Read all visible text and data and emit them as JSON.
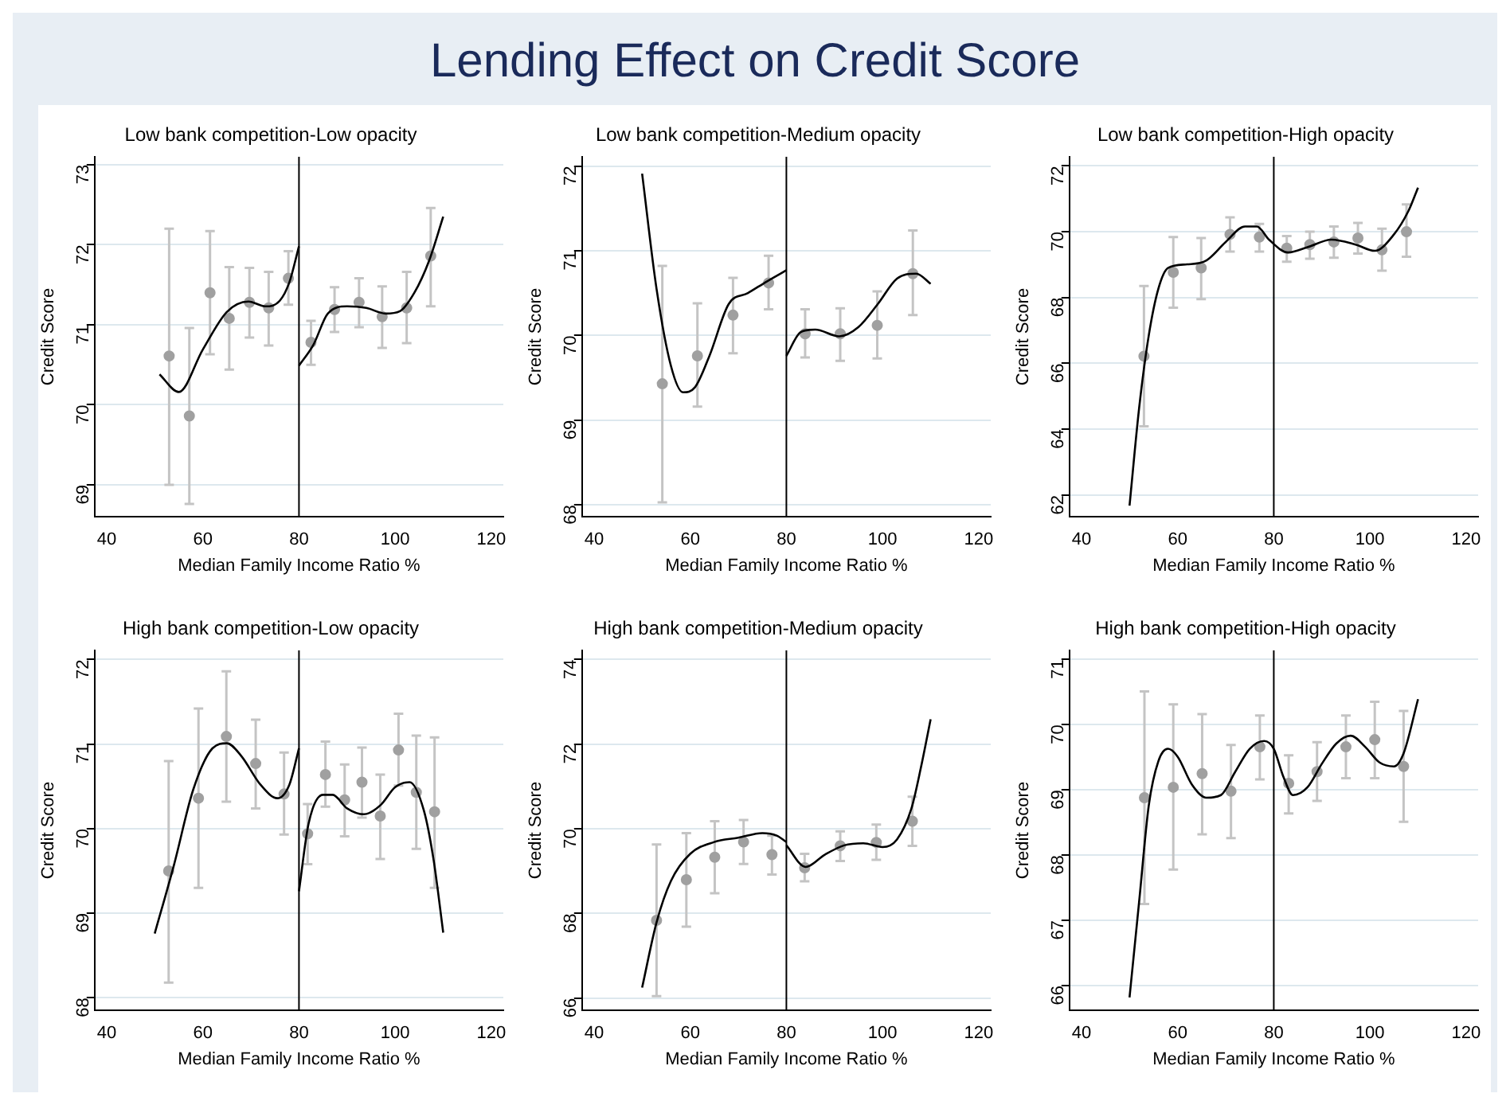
{
  "chart_data": [
    {
      "type": "other",
      "title": "Lending Effect on Credit Score"
    },
    {
      "type": "scatter",
      "title": "Low bank competition-Low opacity",
      "xlabel": "Median Family Income Ratio %",
      "ylabel": "Credit Score",
      "xlim": [
        37.5,
        122.5
      ],
      "xticks": [
        40,
        60,
        80,
        100,
        120
      ],
      "ylim": [
        68.6,
        73.1
      ],
      "yticks": [
        69,
        70,
        71,
        72,
        73
      ],
      "grid": "y",
      "ref_lines": [
        {
          "axis": "x",
          "value": 80,
          "color": "#000000"
        }
      ],
      "series": [
        {
          "type": "scatter",
          "color": "#a0a0a0",
          "marker": "circle",
          "x": [
            53,
            57.2,
            61.5,
            65.5,
            69.7,
            73.7,
            77.8,
            82.5,
            87.4,
            92.5,
            97.3,
            102.4,
            107.4
          ],
          "values": [
            70.61,
            69.86,
            71.4,
            71.08,
            71.28,
            71.21,
            71.58,
            70.78,
            71.19,
            71.28,
            71.1,
            71.21,
            71.86
          ],
          "errors": [
            [
              69.0,
              72.2
            ],
            [
              68.76,
              70.96
            ],
            [
              70.63,
              72.17
            ],
            [
              70.44,
              71.72
            ],
            [
              70.84,
              71.71
            ],
            [
              70.74,
              71.66
            ],
            [
              71.25,
              71.92
            ],
            [
              70.5,
              71.05
            ],
            [
              70.91,
              71.47
            ],
            [
              70.97,
              71.58
            ],
            [
              70.71,
              71.48
            ],
            [
              70.77,
              71.66
            ],
            [
              71.23,
              72.46
            ]
          ]
        },
        {
          "type": "line",
          "color": "#000000",
          "marker": "none",
          "x": [
            51,
            55,
            60,
            65,
            69.5,
            73,
            76,
            78,
            80
          ],
          "values": [
            70.38,
            70.16,
            70.69,
            71.16,
            71.29,
            71.23,
            71.3,
            71.53,
            71.98
          ]
        },
        {
          "type": "line",
          "color": "#000000",
          "marker": "none",
          "x": [
            80,
            83,
            86,
            90,
            94,
            98,
            101,
            104,
            107,
            110
          ],
          "values": [
            70.49,
            70.75,
            71.14,
            71.23,
            71.21,
            71.14,
            71.17,
            71.4,
            71.79,
            72.35
          ]
        }
      ]
    },
    {
      "type": "scatter",
      "title": "Low bank competition-Medium opacity",
      "xlabel": "Median Family Income Ratio %",
      "ylabel": "Credit Score",
      "xlim": [
        37.5,
        122.5
      ],
      "xticks": [
        40,
        60,
        80,
        100,
        120
      ],
      "ylim": [
        67.86,
        72.11
      ],
      "yticks": [
        68,
        69,
        70,
        71,
        72
      ],
      "grid": "y",
      "ref_lines": [
        {
          "axis": "x",
          "value": 80,
          "color": "#000000"
        }
      ],
      "series": [
        {
          "type": "scatter",
          "color": "#a0a0a0",
          "marker": "circle",
          "x": [
            54.2,
            61.5,
            68.9,
            76.3,
            83.9,
            91.2,
            98.9,
            106.3
          ],
          "values": [
            69.43,
            69.76,
            70.24,
            70.62,
            70.02,
            70.02,
            70.12,
            70.73
          ],
          "errors": [
            [
              68.03,
              70.82
            ],
            [
              69.16,
              70.38
            ],
            [
              69.79,
              70.68
            ],
            [
              70.31,
              70.94
            ],
            [
              69.74,
              70.31
            ],
            [
              69.7,
              70.32
            ],
            [
              69.73,
              70.52
            ],
            [
              70.24,
              71.24
            ]
          ]
        },
        {
          "type": "line",
          "color": "#000000",
          "marker": "none",
          "x": [
            50,
            53,
            56,
            58.5,
            61,
            64,
            68,
            72,
            76,
            80
          ],
          "values": [
            71.91,
            70.55,
            69.64,
            69.33,
            69.39,
            69.76,
            70.37,
            70.5,
            70.64,
            70.77
          ]
        },
        {
          "type": "line",
          "color": "#000000",
          "marker": "none",
          "x": [
            80,
            83,
            86,
            91,
            95,
            99,
            103,
            107,
            110
          ],
          "values": [
            69.76,
            70.04,
            70.07,
            69.99,
            70.1,
            70.37,
            70.67,
            70.73,
            70.61
          ]
        }
      ]
    },
    {
      "type": "scatter",
      "title": "Low bank competition-High opacity",
      "xlabel": "Median Family Income Ratio %",
      "ylabel": "Credit Score",
      "xlim": [
        37.5,
        122.5
      ],
      "xticks": [
        40,
        60,
        80,
        100,
        120
      ],
      "ylim": [
        61.34,
        72.28
      ],
      "yticks": [
        62,
        64,
        66,
        68,
        70,
        72
      ],
      "grid": "y",
      "ref_lines": [
        {
          "axis": "x",
          "value": 80,
          "color": "#000000"
        }
      ],
      "series": [
        {
          "type": "scatter",
          "color": "#a0a0a0",
          "marker": "circle",
          "x": [
            53,
            59.1,
            64.9,
            70.9,
            77,
            82.7,
            87.5,
            92.5,
            97.5,
            102.5,
            107.6
          ],
          "values": [
            66.22,
            68.77,
            68.9,
            69.92,
            69.84,
            69.5,
            69.61,
            69.69,
            69.81,
            69.45,
            70.0
          ],
          "errors": [
            [
              64.09,
              68.35
            ],
            [
              67.69,
              69.84
            ],
            [
              67.95,
              69.81
            ],
            [
              69.4,
              70.44
            ],
            [
              69.4,
              70.24
            ],
            [
              69.09,
              69.87
            ],
            [
              69.18,
              70.0
            ],
            [
              69.21,
              70.16
            ],
            [
              69.34,
              70.27
            ],
            [
              68.82,
              70.09
            ],
            [
              69.24,
              70.83
            ]
          ]
        },
        {
          "type": "line",
          "color": "#000000",
          "marker": "none",
          "x": [
            50,
            52,
            54,
            56,
            58,
            62,
            66,
            70,
            74,
            76.5,
            79,
            83,
            87,
            92,
            97,
            101,
            105,
            108,
            110
          ],
          "values": [
            61.68,
            64.65,
            66.85,
            68.27,
            68.9,
            69.01,
            69.13,
            69.69,
            70.16,
            70.16,
            69.76,
            69.37,
            69.53,
            69.76,
            69.61,
            69.42,
            69.92,
            70.63,
            71.34
          ]
        }
      ]
    },
    {
      "type": "scatter",
      "title": "High bank competition-Low opacity",
      "xlabel": "Median Family Income Ratio %",
      "ylabel": "Credit Score",
      "xlim": [
        37.5,
        122.5
      ],
      "xticks": [
        40,
        60,
        80,
        100,
        120
      ],
      "ylim": [
        67.85,
        72.11
      ],
      "yticks": [
        68,
        69,
        70,
        71,
        72
      ],
      "grid": "y",
      "ref_lines": [
        {
          "axis": "x",
          "value": 80,
          "color": "#000000"
        }
      ],
      "series": [
        {
          "type": "scatter",
          "color": "#a0a0a0",
          "marker": "circle",
          "x": [
            52.9,
            59.1,
            64.9,
            71,
            76.9,
            81.8,
            85.5,
            89.5,
            93.1,
            96.9,
            100.7,
            104.4,
            108.2
          ],
          "values": [
            69.5,
            70.36,
            71.09,
            70.77,
            70.41,
            69.94,
            70.64,
            70.34,
            70.55,
            70.15,
            70.93,
            70.43,
            70.2
          ],
          "errors": [
            [
              68.18,
              70.8
            ],
            [
              69.3,
              71.42
            ],
            [
              70.32,
              71.86
            ],
            [
              70.24,
              71.29
            ],
            [
              69.93,
              70.9
            ],
            [
              69.58,
              70.29
            ],
            [
              70.26,
              71.03
            ],
            [
              69.91,
              70.76
            ],
            [
              70.13,
              70.96
            ],
            [
              69.64,
              70.64
            ],
            [
              70.51,
              71.36
            ],
            [
              69.76,
              71.1
            ],
            [
              69.3,
              71.08
            ]
          ]
        },
        {
          "type": "line",
          "color": "#000000",
          "marker": "none",
          "x": [
            50,
            54,
            58,
            62,
            65,
            68,
            72,
            75.5,
            78,
            80
          ],
          "values": [
            68.76,
            69.57,
            70.46,
            70.95,
            71.01,
            70.86,
            70.52,
            70.36,
            70.52,
            70.95
          ]
        },
        {
          "type": "line",
          "color": "#000000",
          "marker": "none",
          "x": [
            80,
            82,
            85,
            87,
            90,
            93.5,
            97,
            100,
            103,
            106,
            108,
            110
          ],
          "values": [
            69.26,
            70.06,
            70.4,
            70.4,
            70.24,
            70.17,
            70.28,
            70.49,
            70.55,
            70.21,
            69.63,
            68.77
          ]
        }
      ]
    },
    {
      "type": "scatter",
      "title": "High bank competition-Medium opacity",
      "xlabel": "Median Family Income Ratio %",
      "ylabel": "Credit Score",
      "xlim": [
        37.5,
        122.5
      ],
      "xticks": [
        40,
        60,
        80,
        100,
        120
      ],
      "ylim": [
        65.71,
        74.22
      ],
      "yticks": [
        66,
        68,
        70,
        72,
        74
      ],
      "grid": "y",
      "ref_lines": [
        {
          "axis": "x",
          "value": 80,
          "color": "#000000"
        }
      ],
      "series": [
        {
          "type": "scatter",
          "color": "#a0a0a0",
          "marker": "circle",
          "x": [
            53,
            59.2,
            65.1,
            71.1,
            77,
            83.8,
            91.2,
            98.7,
            106.2
          ],
          "values": [
            67.84,
            68.8,
            69.33,
            69.69,
            69.39,
            69.08,
            69.6,
            69.68,
            70.18
          ],
          "errors": [
            [
              66.05,
              69.63
            ],
            [
              67.69,
              69.9
            ],
            [
              68.48,
              70.18
            ],
            [
              69.17,
              70.21
            ],
            [
              68.92,
              69.84
            ],
            [
              68.76,
              69.41
            ],
            [
              69.24,
              69.94
            ],
            [
              69.27,
              70.1
            ],
            [
              69.6,
              70.76
            ]
          ]
        },
        {
          "type": "line",
          "color": "#000000",
          "marker": "none",
          "x": [
            50,
            53,
            56,
            60,
            65,
            70,
            75,
            78,
            80
          ],
          "values": [
            66.25,
            67.79,
            68.77,
            69.41,
            69.69,
            69.79,
            69.9,
            69.84,
            69.69
          ]
        },
        {
          "type": "line",
          "color": "#000000",
          "marker": "none",
          "x": [
            80,
            84,
            88,
            92,
            96,
            100,
            103,
            106,
            108,
            110
          ],
          "values": [
            69.61,
            69.1,
            69.39,
            69.61,
            69.66,
            69.57,
            69.75,
            70.48,
            71.46,
            72.59
          ]
        }
      ]
    },
    {
      "type": "scatter",
      "title": "High bank competition-High opacity",
      "xlabel": "Median Family Income Ratio %",
      "ylabel": "Credit Score",
      "xlim": [
        37.5,
        122.5
      ],
      "xticks": [
        40,
        60,
        80,
        100,
        120
      ],
      "ylim": [
        65.62,
        71.14
      ],
      "yticks": [
        66,
        67,
        68,
        69,
        70,
        71
      ],
      "grid": "y",
      "ref_lines": [
        {
          "axis": "x",
          "value": 80,
          "color": "#000000"
        }
      ],
      "series": [
        {
          "type": "scatter",
          "color": "#a0a0a0",
          "marker": "circle",
          "x": [
            53.1,
            59.1,
            65.1,
            71.1,
            77.1,
            83.1,
            89,
            95,
            101,
            107
          ],
          "values": [
            68.88,
            69.04,
            69.25,
            68.98,
            69.66,
            69.1,
            69.28,
            69.66,
            69.77,
            69.36
          ],
          "errors": [
            [
              67.25,
              70.51
            ],
            [
              67.78,
              70.31
            ],
            [
              68.32,
              70.16
            ],
            [
              68.26,
              69.69
            ],
            [
              69.16,
              70.14
            ],
            [
              68.64,
              69.53
            ],
            [
              68.83,
              69.73
            ],
            [
              69.18,
              70.14
            ],
            [
              69.18,
              70.35
            ],
            [
              68.51,
              70.21
            ]
          ]
        },
        {
          "type": "line",
          "color": "#000000",
          "marker": "none",
          "x": [
            50,
            52,
            54,
            56,
            58,
            60,
            63,
            66,
            69,
            72,
            75,
            78,
            80,
            82,
            84,
            87,
            90,
            93,
            96,
            99,
            102,
            105,
            107,
            110
          ],
          "values": [
            65.82,
            67.29,
            68.76,
            69.44,
            69.63,
            69.51,
            69.08,
            68.88,
            68.92,
            69.28,
            69.63,
            69.75,
            69.63,
            69.2,
            68.92,
            69.04,
            69.4,
            69.71,
            69.83,
            69.66,
            69.42,
            69.36,
            69.56,
            70.39
          ]
        }
      ]
    }
  ]
}
